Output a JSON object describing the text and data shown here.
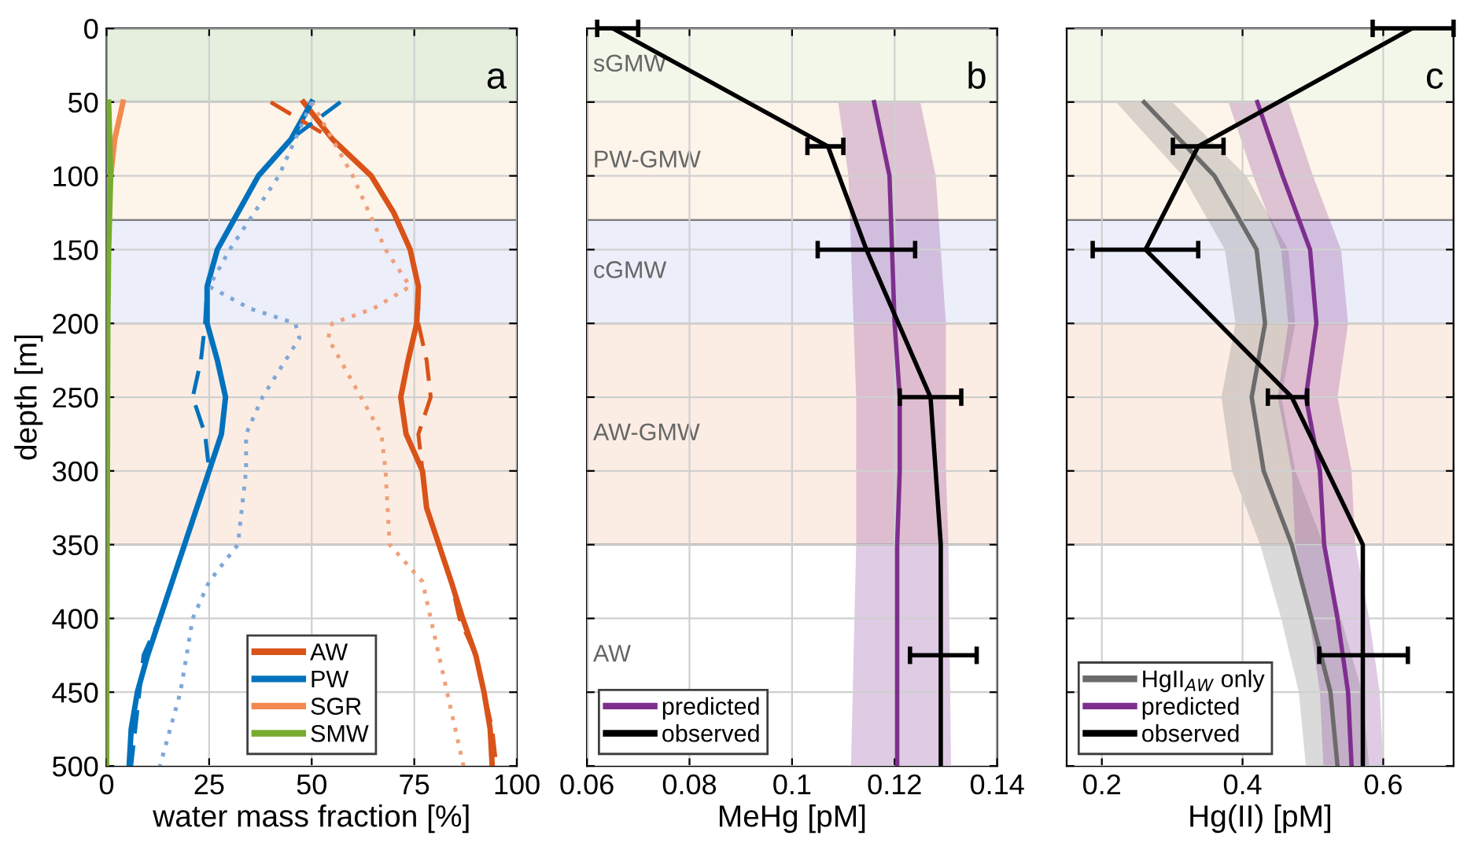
{
  "chart_data": [
    {
      "type": "line",
      "orientation": "horizontal",
      "xlabel": "water mass fraction [%]",
      "ylabel": "depth [m]",
      "annotations": [
        "a"
      ],
      "xlim": [
        0,
        100
      ],
      "xticks": [
        0,
        25,
        50,
        75,
        100
      ],
      "ylim": [
        500,
        0
      ],
      "yticks": [
        0,
        50,
        100,
        150,
        200,
        250,
        300,
        350,
        400,
        450,
        500
      ],
      "grid": true,
      "legend": "bottom",
      "marker": "none",
      "bands": [
        {
          "axis": "y",
          "from": 0,
          "to": 50,
          "color": "#e6eedd"
        },
        {
          "axis": "y",
          "from": 50,
          "to": 130,
          "color": "#fdf4ea"
        },
        {
          "axis": "y",
          "from": 130,
          "to": 200,
          "color": "#eceefa"
        },
        {
          "axis": "y",
          "from": 200,
          "to": 350,
          "color": "#fcede4"
        }
      ],
      "series": [
        {
          "name": "AW",
          "color": "#d95319",
          "line_style": "solid",
          "values": [
            48,
            55,
            64.5,
            70,
            74,
            76,
            75.6,
            73.5,
            71.7,
            73,
            77,
            78,
            81,
            84,
            86.8,
            90,
            92,
            93.5,
            94
          ],
          "x": [
            50,
            75,
            100,
            125,
            150,
            175,
            200,
            225,
            250,
            275,
            300,
            325,
            350,
            375,
            400,
            425,
            450,
            475,
            500
          ]
        },
        {
          "name": "PW",
          "color": "#0072bd",
          "line_style": "solid",
          "values": [
            50,
            45,
            37,
            32,
            27,
            24.5,
            24.5,
            27,
            29,
            28,
            25,
            22,
            19,
            16,
            13,
            10,
            7.5,
            6,
            5.5
          ],
          "x": [
            50,
            75,
            100,
            125,
            150,
            175,
            200,
            225,
            250,
            275,
            300,
            325,
            350,
            375,
            400,
            425,
            450,
            475,
            500
          ]
        },
        {
          "name": "SGR",
          "color": "#f4894f",
          "line_style": "solid",
          "values": [
            4,
            2,
            1
          ],
          "x": [
            50,
            75,
            100
          ]
        },
        {
          "name": "SMW",
          "color": "#77ac30",
          "line_style": "solid",
          "values": [
            0.5,
            1,
            0.5,
            0.3,
            0
          ],
          "x": [
            50,
            100,
            150,
            200,
            500
          ]
        },
        {
          "color": "#d95319",
          "line_style": "dashed",
          "values": [
            40,
            55,
            64.5,
            70,
            74,
            76,
            76,
            78,
            79,
            76,
            77,
            78,
            81,
            84,
            86,
            90,
            92,
            94,
            95
          ],
          "x": [
            50,
            75,
            100,
            125,
            150,
            175,
            200,
            225,
            250,
            275,
            300,
            325,
            350,
            375,
            400,
            425,
            450,
            475,
            500
          ]
        },
        {
          "color": "#0072bd",
          "line_style": "dashed",
          "values": [
            57,
            45,
            37,
            32,
            27,
            24.5,
            24,
            23,
            21,
            24,
            25,
            22,
            19,
            16,
            13,
            9,
            8,
            7,
            6
          ],
          "x": [
            50,
            75,
            100,
            125,
            150,
            175,
            200,
            225,
            250,
            275,
            300,
            325,
            350,
            375,
            400,
            425,
            450,
            475,
            500
          ]
        },
        {
          "color": "#f0a07a",
          "line_style": "dotted",
          "values": [
            50,
            60,
            68,
            74,
            65,
            55,
            54,
            62,
            67,
            68,
            69,
            77,
            79,
            83,
            87
          ],
          "x": [
            50,
            100,
            150,
            175,
            190,
            200,
            210,
            250,
            275,
            300,
            350,
            375,
            400,
            450,
            500
          ]
        },
        {
          "color": "#7fa8d8",
          "line_style": "dotted",
          "values": [
            50,
            42,
            30,
            25,
            35,
            46,
            47,
            38,
            34,
            34,
            32,
            25,
            21,
            18,
            13
          ],
          "x": [
            50,
            100,
            150,
            175,
            190,
            200,
            210,
            250,
            275,
            300,
            350,
            375,
            400,
            450,
            500
          ]
        }
      ]
    },
    {
      "type": "line",
      "orientation": "horizontal",
      "xlabel": "MeHg [pM]",
      "annotations": [
        "b"
      ],
      "xlim": [
        0.06,
        0.14
      ],
      "xticks": [
        0.06,
        0.08,
        0.1,
        0.12,
        0.14
      ],
      "ylim": [
        500,
        0
      ],
      "yticks": [
        0,
        50,
        100,
        150,
        200,
        250,
        300,
        350,
        400,
        450,
        500
      ],
      "tick_labels": "x",
      "grid": true,
      "legend": "bottom left",
      "marker": "none",
      "bands": [
        {
          "axis": "y",
          "from": 0,
          "to": 50,
          "color": "#f2f7ea",
          "label": "sGMW"
        },
        {
          "axis": "y",
          "from": 50,
          "to": 130,
          "color": "#fdf4ea",
          "label": "PW-GMW"
        },
        {
          "axis": "y",
          "from": 130,
          "to": 200,
          "color": "#eceefa",
          "label": "cGMW"
        },
        {
          "axis": "y",
          "from": 200,
          "to": 350,
          "color": "#fcede4",
          "label": "AW-GMW"
        },
        {
          "axis": "y",
          "from": 350,
          "to": 500,
          "color": "#ffffff",
          "label": "AW"
        }
      ],
      "series": [
        {
          "name": "predicted",
          "color": "#7e2f8e",
          "line_style": "solid",
          "values": [
            0.116,
            0.119,
            0.1195,
            0.12,
            0.121,
            0.121,
            0.1205,
            0.1205
          ],
          "x": [
            50,
            100,
            150,
            200,
            250,
            300,
            350,
            500
          ],
          "lower": [
            0.109,
            0.111,
            0.1115,
            0.112,
            0.1125,
            0.1125,
            0.1125,
            0.1115
          ],
          "upper": [
            0.125,
            0.128,
            0.129,
            0.13,
            0.13,
            0.13,
            0.1305,
            0.131
          ]
        },
        {
          "name": "observed",
          "color": "#000000",
          "line_style": "solid",
          "values": [
            0.065,
            0.107,
            0.1145,
            0.127,
            0.129,
            0.129,
            0.129
          ],
          "x": [
            0,
            80,
            150,
            250,
            350,
            425,
            500
          ],
          "errors": [
            [
              0.062,
              0.07
            ],
            [
              0.103,
              0.11
            ],
            [
              0.105,
              0.124
            ],
            [
              0.121,
              0.133
            ],
            null,
            [
              0.123,
              0.136
            ],
            null
          ]
        }
      ]
    },
    {
      "type": "line",
      "orientation": "horizontal",
      "xlabel": "Hg(II) [pM]",
      "annotations": [
        "c"
      ],
      "xlim": [
        0.15,
        0.7
      ],
      "xticks": [
        0.2,
        0.4,
        0.6
      ],
      "ylim": [
        500,
        0
      ],
      "yticks": [
        0,
        50,
        100,
        150,
        200,
        250,
        300,
        350,
        400,
        450,
        500
      ],
      "tick_labels": "x",
      "grid": true,
      "legend": "bottom left",
      "marker": "none",
      "bands": [
        {
          "axis": "y",
          "from": 0,
          "to": 50,
          "color": "#f2f7ea"
        },
        {
          "axis": "y",
          "from": 50,
          "to": 130,
          "color": "#fdf4ea"
        },
        {
          "axis": "y",
          "from": 130,
          "to": 200,
          "color": "#eceefa"
        },
        {
          "axis": "y",
          "from": 200,
          "to": 350,
          "color": "#fcede4"
        }
      ],
      "series": [
        {
          "name": "HgII$_{AW}$ only",
          "color": "#6b6b6b",
          "line_style": "solid",
          "values": [
            0.26,
            0.36,
            0.42,
            0.432,
            0.413,
            0.43,
            0.47,
            0.498,
            0.525,
            0.535
          ],
          "x": [
            50,
            100,
            150,
            200,
            250,
            300,
            350,
            400,
            450,
            500
          ],
          "lower": [
            0.22,
            0.315,
            0.375,
            0.39,
            0.37,
            0.385,
            0.425,
            0.455,
            0.48,
            0.49
          ],
          "upper": [
            0.3,
            0.405,
            0.465,
            0.475,
            0.455,
            0.475,
            0.515,
            0.54,
            0.57,
            0.58
          ]
        },
        {
          "name": "predicted",
          "color": "#7e2f8e",
          "line_style": "solid",
          "values": [
            0.421,
            0.457,
            0.496,
            0.505,
            0.49,
            0.51,
            0.516,
            0.535,
            0.55,
            0.555
          ],
          "x": [
            50,
            100,
            150,
            200,
            250,
            300,
            350,
            400,
            450,
            500
          ],
          "lower": [
            0.38,
            0.415,
            0.455,
            0.465,
            0.45,
            0.47,
            0.475,
            0.495,
            0.51,
            0.515
          ],
          "upper": [
            0.465,
            0.5,
            0.54,
            0.55,
            0.535,
            0.555,
            0.56,
            0.58,
            0.595,
            0.6
          ]
        },
        {
          "name": "observed",
          "color": "#000000",
          "line_style": "solid",
          "values": [
            0.641,
            0.337,
            0.262,
            0.47,
            0.571,
            0.571,
            0.571
          ],
          "x": [
            0,
            80,
            150,
            250,
            350,
            425,
            500
          ],
          "errors": [
            [
              0.585,
              0.7
            ],
            [
              0.301,
              0.373
            ],
            [
              0.187,
              0.337
            ],
            [
              0.436,
              0.492
            ],
            null,
            [
              0.509,
              0.635
            ],
            null
          ]
        }
      ]
    }
  ]
}
